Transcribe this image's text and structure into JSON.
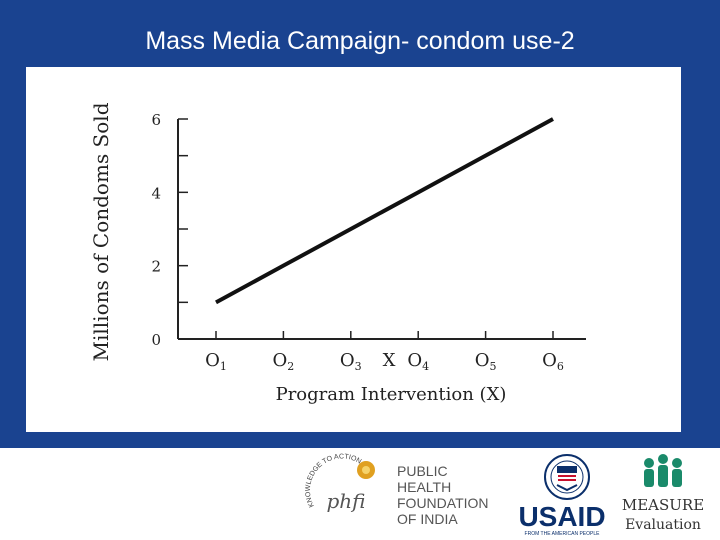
{
  "slide": {
    "title": "Mass Media Campaign- condom use-2"
  },
  "chart_data": {
    "type": "line",
    "categories": [
      "O1",
      "O2",
      "O3",
      "O4",
      "O5",
      "O6"
    ],
    "intervention_label": "X",
    "series": [
      {
        "values": [
          1.0,
          2.0,
          3.0,
          4.0,
          5.0,
          6.0
        ]
      }
    ],
    "xlabel": "Program Intervention (X)",
    "ylabel": "Millions of Condoms Sold",
    "ylim": [
      0,
      6
    ],
    "yticks": [
      0,
      2,
      4,
      6
    ],
    "grid": false
  },
  "logos": {
    "phfi": {
      "arc_text": "KNOWLEDGE TO ACTION",
      "mark": "phfi",
      "lines": [
        "PUBLIC",
        "HEALTH",
        "FOUNDATION",
        "OF INDIA"
      ]
    },
    "usaid": {
      "wordmark": "USAID",
      "tagline": "FROM THE AMERICAN PEOPLE"
    },
    "measure": {
      "name": "MEASURE",
      "sub": "Evaluation"
    }
  },
  "colors": {
    "background": "#1a4390",
    "line": "#111111",
    "measure_green": "#1a8a6a",
    "usaid_blue": "#0b2f6b",
    "usaid_red": "#c8102e"
  }
}
